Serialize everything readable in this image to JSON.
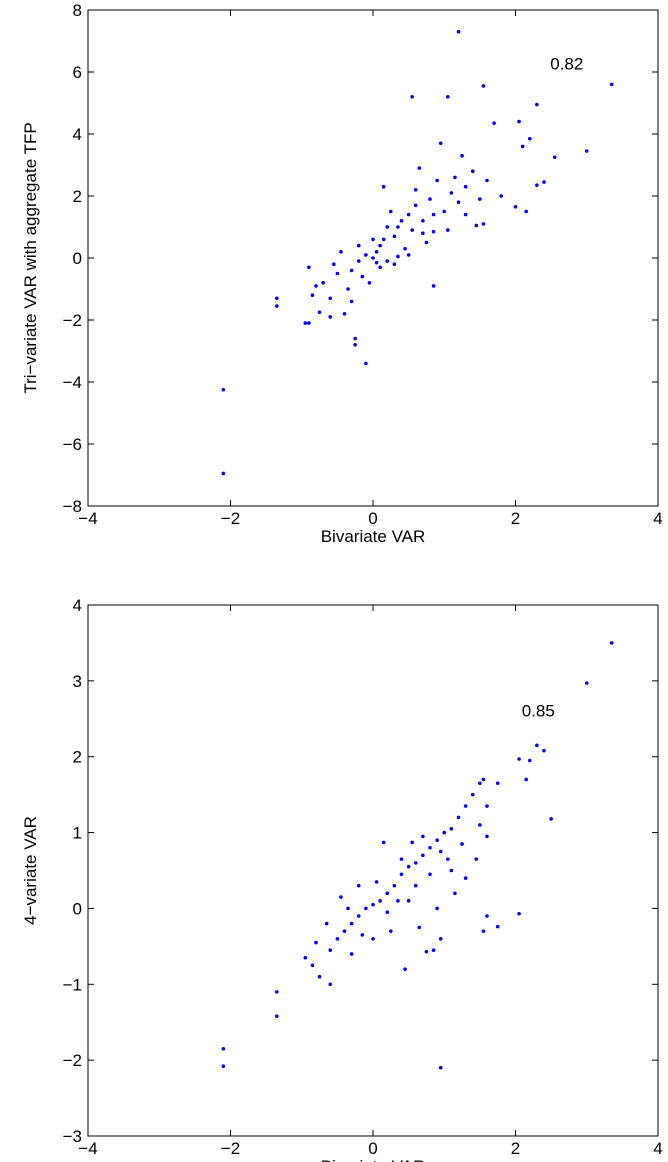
{
  "chart_data": [
    {
      "type": "scatter",
      "xlabel": "Bivariate VAR",
      "ylabel": "Tri−variate VAR with aggregate TFP",
      "annotation": "0.82",
      "series": [
        {
          "color": "#0000ff",
          "x": [
            1.2,
            3.35,
            1.55,
            0.55,
            1.05,
            2.3,
            2.05,
            1.7,
            2.2,
            2.1,
            3,
            2.55,
            2.4,
            2.3,
            2.15,
            2,
            1.55,
            0.85,
            0.85,
            0.35,
            -0.1,
            -0.25,
            -0.25,
            -1.35,
            -1.35,
            -0.95,
            -0.9,
            -2.1,
            -2.1,
            -0.75,
            -0.6,
            -0.4,
            -0.85,
            -0.9,
            -0.7,
            -0.5,
            -0.3,
            -0.2,
            -0.1,
            0,
            0.05,
            0.1,
            0.15,
            0.2,
            0.3,
            0.4,
            0.5,
            0.6,
            0.7,
            0.8,
            0.9,
            1,
            1.1,
            1.2,
            1.3,
            1.4,
            1.5,
            1.6,
            1.8,
            0.15,
            0.65,
            0.95,
            1.25,
            -0.45,
            -0.15,
            0.1,
            0.3,
            0.45,
            0.55,
            0.75,
            -0.6,
            -0.35,
            -0.05,
            0.25,
            0.5,
            1.05,
            1.45,
            -0.2,
            0,
            0.2,
            0.6,
            0.85,
            1.15,
            -0.8,
            -0.55,
            0.05,
            0.35,
            0.7,
            1.3,
            -0.3
          ],
          "y": [
            7.3,
            5.6,
            5.55,
            5.2,
            5.2,
            4.95,
            4.4,
            4.35,
            3.85,
            3.6,
            3.45,
            3.25,
            2.45,
            2.35,
            1.5,
            1.65,
            1.1,
            0.85,
            -0.9,
            0.05,
            -3.4,
            -2.8,
            -2.6,
            -1.3,
            -1.55,
            -2.1,
            -2.1,
            -4.25,
            -6.95,
            -1.75,
            -1.9,
            -1.8,
            -1.2,
            -0.3,
            -0.8,
            -0.5,
            -0.4,
            -0.1,
            0.1,
            0,
            0.2,
            0.4,
            0.6,
            1,
            0.7,
            1.2,
            1.4,
            1.7,
            1.2,
            1.9,
            2.5,
            1.5,
            2.1,
            1.8,
            1.4,
            2.8,
            1.9,
            2.5,
            2,
            2.3,
            2.9,
            3.7,
            3.3,
            0.2,
            -0.6,
            -0.3,
            -0.2,
            0.3,
            0.9,
            0.5,
            -1.3,
            -1,
            -0.8,
            1.5,
            0.1,
            0.9,
            1.05,
            0.4,
            0.6,
            -0.1,
            2.2,
            1.4,
            2.6,
            -0.9,
            -0.2,
            -0.15,
            1,
            0.8,
            2.3,
            -1.4
          ]
        }
      ],
      "xlim": [
        -4,
        4
      ],
      "ylim": [
        -8,
        8
      ],
      "xticks": [
        {
          "value": -4,
          "label": "−4"
        },
        {
          "value": -2,
          "label": "−2"
        },
        0,
        2,
        4
      ],
      "yticks": [
        {
          "value": -8,
          "label": "−8"
        },
        {
          "value": -6,
          "label": "−6"
        },
        {
          "value": -4,
          "label": "−4"
        },
        {
          "value": -2,
          "label": "−2"
        },
        0,
        2,
        4,
        6,
        8
      ]
    },
    {
      "type": "scatter",
      "xlabel": "Bivariate VAR",
      "ylabel": "4−variate VAR",
      "annotation": "0.85",
      "series": [
        {
          "color": "#0000ff",
          "x": [
            3.35,
            3,
            2.4,
            2.3,
            2.2,
            2.05,
            2.15,
            2.5,
            2.05,
            1.75,
            1.6,
            1.55,
            0.95,
            -2.1,
            -2.1,
            -1.35,
            -1.35,
            -0.95,
            -0.85,
            -0.75,
            -0.6,
            -0.5,
            -0.4,
            -0.3,
            -0.2,
            -0.1,
            0,
            0.1,
            0.2,
            0.3,
            0.4,
            0.5,
            0.6,
            0.7,
            0.8,
            0.9,
            1,
            1.1,
            1.2,
            1.3,
            1.4,
            1.5,
            1.55,
            1.75,
            1.6,
            1.5,
            0.55,
            0.15,
            -0.6,
            -0.3,
            0,
            0.25,
            0.45,
            0.65,
            0.9,
            0.95,
            0.85,
            1.15,
            1.3,
            0.75,
            -0.45,
            -0.2,
            0.05,
            0.35,
            0.6,
            0.8,
            1.05,
            1.25,
            -0.65,
            -0.8,
            -0.15,
            0.5,
            1.45,
            1.6,
            1.1,
            0.7,
            -0.35,
            0.2,
            0.4,
            0.95
          ],
          "y": [
            3.5,
            2.97,
            2.08,
            2.15,
            1.95,
            1.97,
            1.7,
            1.18,
            -0.07,
            -0.24,
            -0.1,
            -0.3,
            -2.1,
            -1.85,
            -2.08,
            -1.1,
            -1.42,
            -0.65,
            -0.75,
            -0.9,
            -0.55,
            -0.4,
            -0.3,
            -0.2,
            -0.1,
            0,
            0.05,
            0.1,
            0.2,
            0.3,
            0.45,
            0.55,
            0.6,
            0.7,
            0.8,
            0.9,
            1,
            1.05,
            1.2,
            1.35,
            1.5,
            1.65,
            1.7,
            1.65,
            1.35,
            1.1,
            0.87,
            0.87,
            -1,
            -0.6,
            -0.4,
            -0.3,
            -0.8,
            -0.25,
            0,
            -0.4,
            -0.55,
            0.2,
            0.4,
            -0.57,
            0.15,
            0.3,
            0.35,
            0.1,
            0.3,
            0.45,
            0.65,
            0.85,
            -0.2,
            -0.45,
            -0.35,
            0.1,
            0.65,
            0.95,
            0.5,
            0.95,
            0,
            -0.05,
            0.65,
            0.75
          ]
        }
      ],
      "xlim": [
        -4,
        4
      ],
      "ylim": [
        -3,
        4
      ],
      "xticks": [
        {
          "value": -4,
          "label": "−4"
        },
        {
          "value": -2,
          "label": "−2"
        },
        0,
        2,
        4
      ],
      "yticks": [
        {
          "value": -3,
          "label": "−3"
        },
        {
          "value": -2,
          "label": "−2"
        },
        {
          "value": -1,
          "label": "−1"
        },
        0,
        1,
        2,
        3,
        4
      ]
    }
  ]
}
